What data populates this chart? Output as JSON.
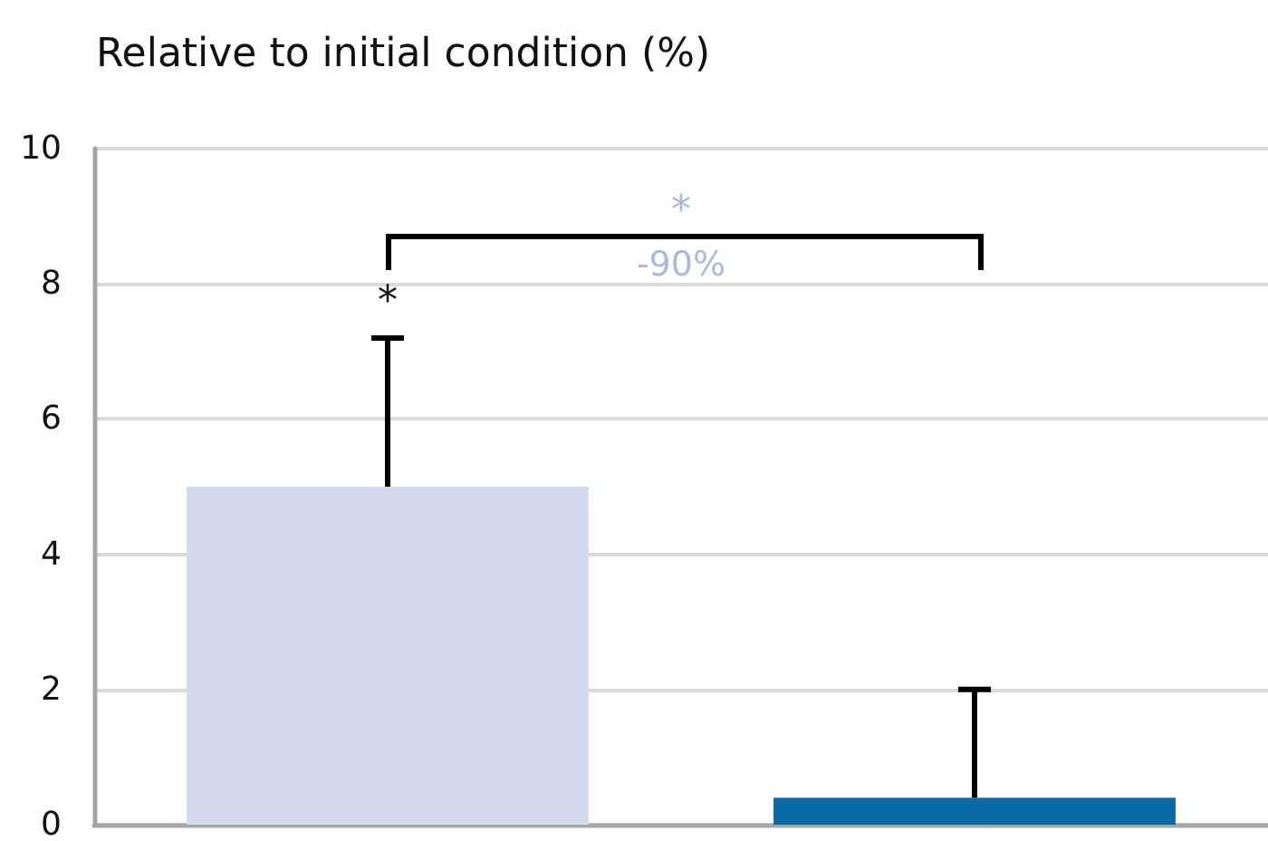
{
  "chart_data": {
    "type": "bar",
    "title": "Relative to initial condition (%)",
    "categories": [
      null,
      null
    ],
    "values": [
      5,
      0.4
    ],
    "colors": [
      "#d3dcee",
      "#0a6aa6"
    ],
    "errors": [
      [
        5,
        7.2
      ],
      [
        0.4,
        2
      ]
    ],
    "ylim": [
      0,
      10
    ],
    "yticks": [
      0,
      2,
      4,
      6,
      8,
      10
    ],
    "grid": "y",
    "annotations": [
      "*",
      "*",
      "-90%"
    ]
  }
}
